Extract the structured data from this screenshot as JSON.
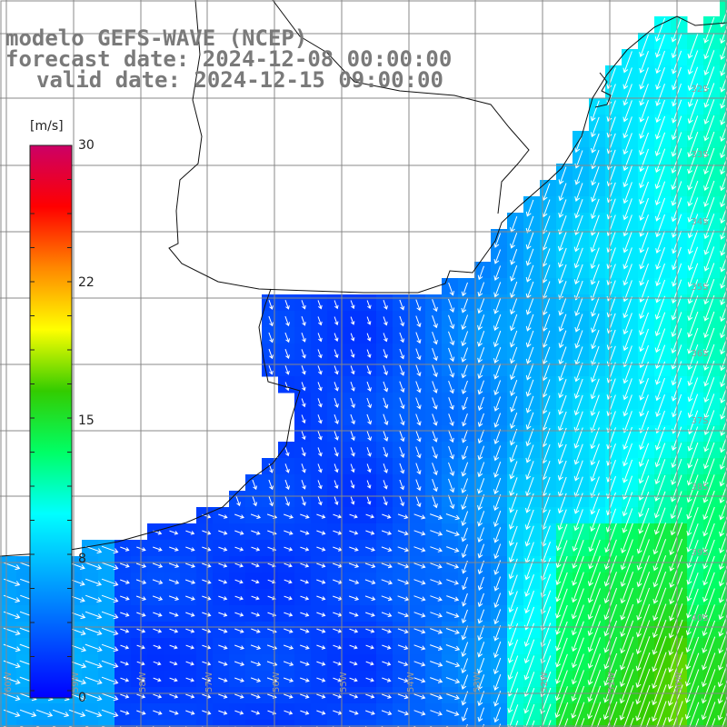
{
  "title": {
    "line1": "modelo GEFS-WAVE (NCEP)",
    "line2": "forecast date: 2024-12-08 00:00:00",
    "line3": "valid date: 2024-12-15 09:00:00"
  },
  "colorbar": {
    "unit": "[m/s]",
    "ticks": [
      {
        "label": "30",
        "value": 30
      },
      {
        "label": "22",
        "value": 22
      },
      {
        "label": "15",
        "value": 15
      },
      {
        "label": "8",
        "value": 8
      },
      {
        "label": "0",
        "value": 0
      }
    ],
    "stops": [
      "#0000ff",
      "#0055ff",
      "#00aaff",
      "#00ffff",
      "#00ff66",
      "#33cc00",
      "#ffff00",
      "#ff8800",
      "#ff0000",
      "#cc0066"
    ]
  },
  "map": {
    "lat_labels": [
      "32S",
      "33S",
      "34S",
      "35S",
      "36S",
      "37S",
      "38S",
      "39S",
      "40S"
    ],
    "lon_labels": [
      "60W",
      "59W",
      "58W",
      "57W",
      "56W",
      "55W",
      "54W",
      "53W",
      "52W",
      "51W",
      "50W"
    ],
    "land_color": "#ffffff",
    "grid_color": "#888888",
    "coast_color": "#111111",
    "arrow_color": "#ffffff"
  }
}
